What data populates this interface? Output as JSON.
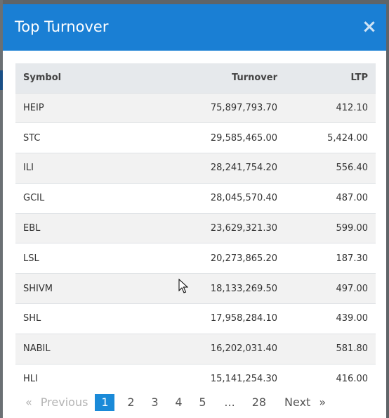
{
  "modal": {
    "title": "Top Turnover",
    "close_glyph": "×"
  },
  "table": {
    "headers": [
      "Symbol",
      "Turnover",
      "LTP"
    ],
    "rows": [
      {
        "symbol": "HEIP",
        "turnover": "75,897,793.70",
        "ltp": "412.10"
      },
      {
        "symbol": "STC",
        "turnover": "29,585,465.00",
        "ltp": "5,424.00"
      },
      {
        "symbol": "ILI",
        "turnover": "28,241,754.20",
        "ltp": "556.40"
      },
      {
        "symbol": "GCIL",
        "turnover": "28,045,570.40",
        "ltp": "487.00"
      },
      {
        "symbol": "EBL",
        "turnover": "23,629,321.30",
        "ltp": "599.00"
      },
      {
        "symbol": "LSL",
        "turnover": "20,273,865.20",
        "ltp": "187.30"
      },
      {
        "symbol": "SHIVM",
        "turnover": "18,133,269.50",
        "ltp": "497.00"
      },
      {
        "symbol": "SHL",
        "turnover": "17,958,284.10",
        "ltp": "439.00"
      },
      {
        "symbol": "NABIL",
        "turnover": "16,202,031.40",
        "ltp": "581.80"
      },
      {
        "symbol": "HLI",
        "turnover": "15,141,254.30",
        "ltp": "416.00"
      }
    ]
  },
  "pagination": {
    "prev_arrow": "«",
    "previous_label": "Previous",
    "pages": [
      "1",
      "2",
      "3",
      "4",
      "5"
    ],
    "ellipsis": "...",
    "last_page": "28",
    "next_label": "Next",
    "next_arrow": "»",
    "current_page": 1
  },
  "colors": {
    "header_bg": "#1a7fd4",
    "active_page": "#1a8ad8"
  },
  "icons": {
    "cursor": "mouse-pointer-icon"
  }
}
